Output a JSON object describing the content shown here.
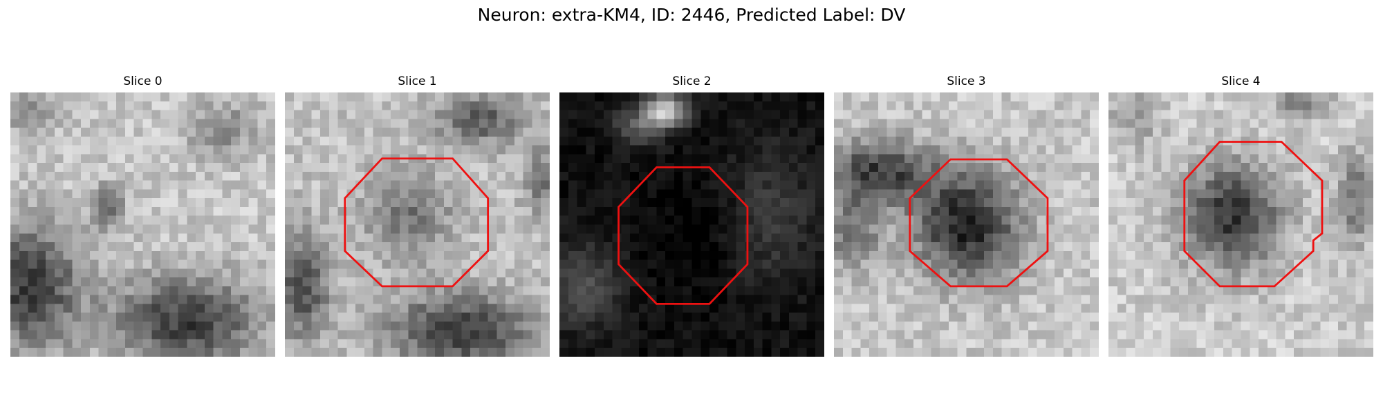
{
  "figure": {
    "title": "Neuron: extra-KM4, ID: 2446, Predicted Label: DV"
  },
  "panels": [
    {
      "title": "Slice 0",
      "has_outline": false,
      "mean_brightness": 0.62,
      "dark_regions": "lower-left and lower-right dark blobs, small dark spot center-left"
    },
    {
      "title": "Slice 1",
      "has_outline": true,
      "mean_brightness": 0.58,
      "dark_regions": "mid-gray cell body in octagon, dark bottom and left"
    },
    {
      "title": "Slice 2",
      "has_outline": true,
      "mean_brightness": 0.12,
      "dark_regions": "mostly black, bright patch near top"
    },
    {
      "title": "Slice 3",
      "has_outline": true,
      "mean_brightness": 0.55,
      "dark_regions": "dark cell body in octagon with dark band on left"
    },
    {
      "title": "Slice 4",
      "has_outline": true,
      "mean_brightness": 0.6,
      "dark_regions": "dark cell body inside octagon, bright surroundings"
    }
  ],
  "colors": {
    "outline": "#ee1111"
  }
}
